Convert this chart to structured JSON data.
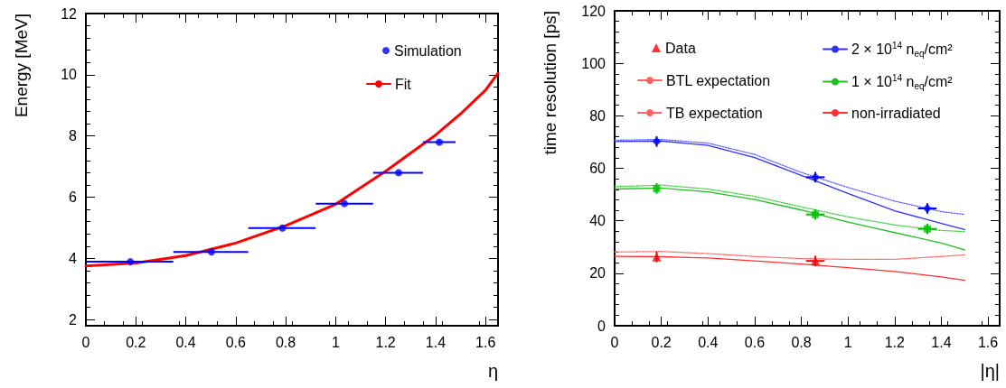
{
  "chart_data": [
    {
      "type": "scatter",
      "xlabel": "η",
      "ylabel": "Energy [MeV]",
      "xlim": [
        0,
        1.65
      ],
      "ylim": [
        1.8,
        12
      ],
      "xticks": [
        0,
        0.2,
        0.4,
        0.6,
        0.8,
        1,
        1.2,
        1.4,
        1.6
      ],
      "yticks": [
        2,
        4,
        6,
        8,
        10,
        12
      ],
      "legend": "top right",
      "series": [
        {
          "name": "Simulation",
          "type": "scatter",
          "marker": "circle",
          "color": "#0000ff",
          "x": [
            0.178,
            0.503,
            0.787,
            1.035,
            1.252,
            1.415
          ],
          "values": [
            3.89,
            4.21,
            4.99,
            5.79,
            6.8,
            7.8
          ],
          "xerrors": [
            [
              0,
              0.35
            ],
            [
              0.35,
              0.65
            ],
            [
              0.65,
              0.92
            ],
            [
              0.92,
              1.15
            ],
            [
              1.15,
              1.35
            ],
            [
              1.35,
              1.48
            ]
          ]
        },
        {
          "name": "Fit",
          "type": "line",
          "marker": "none",
          "line_style": "solid",
          "color": "#ff0000",
          "x": [
            0,
            0.2,
            0.4,
            0.6,
            0.8,
            1,
            1.2,
            1.4,
            1.5,
            1.6,
            1.65
          ],
          "values": [
            3.75,
            3.85,
            4.09,
            4.5,
            5.07,
            5.77,
            6.85,
            8.03,
            8.72,
            9.5,
            10.05
          ]
        }
      ]
    },
    {
      "type": "line",
      "xlabel": "|η|",
      "ylabel": "time resolution [ps]",
      "xlim": [
        0,
        1.65
      ],
      "ylim": [
        0,
        120
      ],
      "xticks": [
        0,
        0.2,
        0.4,
        0.6,
        0.8,
        1,
        1.2,
        1.4,
        1.6
      ],
      "yticks": [
        0,
        20,
        40,
        60,
        80,
        100,
        120
      ],
      "legend": "top",
      "x": [
        0,
        0.2,
        0.4,
        0.6,
        0.8,
        1,
        1.2,
        1.4,
        1.5
      ],
      "series": [
        {
          "name": "Data",
          "type": "scatter",
          "marker": "triangle",
          "color": "#ff0000",
          "x": [
            0.18,
            0.86
          ],
          "values": [
            26.2,
            24.7
          ],
          "errors": [
            2,
            2
          ],
          "xerrors": [
            null,
            0.04
          ]
        },
        {
          "name": "BTL expectation",
          "marker": "none",
          "line_style": "solid",
          "color": "#ff6060",
          "values": [
            null,
            null,
            null,
            null,
            null,
            null,
            null,
            null,
            null
          ]
        },
        {
          "name": "TB expectation",
          "marker": "none",
          "line_style": "dotted",
          "color": "#ff6060",
          "values": [
            28.1,
            28.3,
            27.5,
            26.4,
            25.6,
            25.3,
            25.3,
            26.4,
            27
          ]
        },
        {
          "name": "2 × 10$^{14}$ n$_{eq}$/cm²",
          "marker": "none",
          "line_style": "solid",
          "color": "#3030ff",
          "values": [
            70.2,
            70.4,
            68.7,
            64.1,
            57.3,
            50.4,
            43.8,
            39,
            36.7
          ]
        },
        {
          "name": "1 × 10$^{14}$ n$_{eq}$/cm²",
          "marker": "none",
          "line_style": "solid",
          "color": "#20c020",
          "values": [
            52.1,
            52.5,
            51,
            48.1,
            44.1,
            39.5,
            35.5,
            31.5,
            28.9
          ]
        },
        {
          "name": "non-irradiated",
          "marker": "none",
          "line_style": "solid",
          "color": "#ff3030",
          "values": [
            26.4,
            26.3,
            25.8,
            24.7,
            23.5,
            22.1,
            20.7,
            18.6,
            17.3
          ]
        },
        {
          "type": "scatter",
          "marker": "diamond",
          "color": "#0000ff",
          "x": [
            0.18,
            0.86,
            1.34
          ],
          "values": [
            70.2,
            56.6,
            44.7
          ],
          "errors": [
            2,
            2,
            2
          ],
          "xerrors": [
            null,
            0.04,
            0.04
          ]
        },
        {
          "type": "scatter",
          "marker": "square",
          "color": "#00c000",
          "x": [
            0.18,
            0.86,
            1.34
          ],
          "values": [
            52.3,
            42.4,
            36.9
          ],
          "errors": [
            2,
            2,
            2
          ],
          "xerrors": [
            null,
            0.04,
            0.04
          ]
        },
        {
          "marker": "none",
          "line_style": "dotted",
          "color": "#6060ff",
          "values": [
            70.7,
            71,
            69.6,
            65.3,
            58.4,
            52.7,
            47.5,
            43.5,
            42.4
          ]
        },
        {
          "marker": "none",
          "line_style": "dotted",
          "color": "#40d040",
          "values": [
            53,
            53.6,
            52.1,
            49.3,
            45.3,
            41.5,
            38.4,
            36.3,
            35.9
          ]
        }
      ]
    }
  ]
}
